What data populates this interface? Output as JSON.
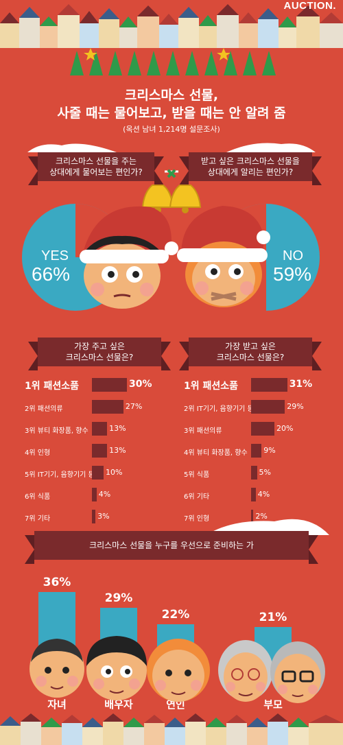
{
  "brand": "AUCTION.",
  "headline": {
    "line1": "크리스마스 선물,",
    "line2": "사줄 때는 물어보고, 받을 때는 안 알려 줌",
    "source": "(옥션 남녀 1,214명 설문조사)"
  },
  "q1": {
    "text1": "크리스마스 선물을 주는",
    "text2": "상대에게 물어보는 편인가?",
    "answer": "YES",
    "value": "66%",
    "fraction": 0.66
  },
  "q2": {
    "text1": "받고 싶은 크리스마스 선물을",
    "text2": "상대에게 알리는 편인가?",
    "answer": "NO",
    "value": "59%",
    "fraction": 0.59
  },
  "give": {
    "title1": "가장 주고 싶은",
    "title2": "크리스마스 선물은?",
    "items": [
      {
        "rank": "1위",
        "label": "패션소품",
        "value": 30,
        "display": "30%"
      },
      {
        "rank": "2위",
        "label": "패션의류",
        "value": 27,
        "display": "27%"
      },
      {
        "rank": "3위",
        "label": "뷰티 화장품, 향수",
        "value": 13,
        "display": "13%"
      },
      {
        "rank": "4위",
        "label": "인형",
        "value": 13,
        "display": "13%"
      },
      {
        "rank": "5위",
        "label": "IT기기, 음향기기 등",
        "value": 10,
        "display": "10%"
      },
      {
        "rank": "6위",
        "label": "식품",
        "value": 4,
        "display": "4%"
      },
      {
        "rank": "7위",
        "label": "기타",
        "value": 3,
        "display": "3%"
      }
    ]
  },
  "receive": {
    "title1": "가장 받고 싶은",
    "title2": "크리스마스 선물은?",
    "items": [
      {
        "rank": "1위",
        "label": "패션소품",
        "value": 31,
        "display": "31%"
      },
      {
        "rank": "2위",
        "label": "IT기기, 음향기기 등",
        "value": 29,
        "display": "29%"
      },
      {
        "rank": "3위",
        "label": "패션의류",
        "value": 20,
        "display": "20%"
      },
      {
        "rank": "4위",
        "label": "뷰티 화장품, 향수",
        "value": 9,
        "display": "9%"
      },
      {
        "rank": "5위",
        "label": "식품",
        "value": 5,
        "display": "5%"
      },
      {
        "rank": "6위",
        "label": "기타",
        "value": 4,
        "display": "4%"
      },
      {
        "rank": "7위",
        "label": "인형",
        "value": 2,
        "display": "2%"
      }
    ]
  },
  "who": {
    "title": "크리스마스 선물을 누구를 우선으로 준비하는 가",
    "items": [
      {
        "label": "자녀",
        "value": 36,
        "display": "36%"
      },
      {
        "label": "배우자",
        "value": 29,
        "display": "29%"
      },
      {
        "label": "연인",
        "value": 22,
        "display": "22%"
      },
      {
        "label": "부모",
        "value": 21,
        "display": "21%"
      }
    ]
  },
  "colors": {
    "background": "#d94b3a",
    "ribbon": "#7a2a2c",
    "accent": "#3aa9c2",
    "tree": "#2f9a4a",
    "star": "#f3c321"
  }
}
